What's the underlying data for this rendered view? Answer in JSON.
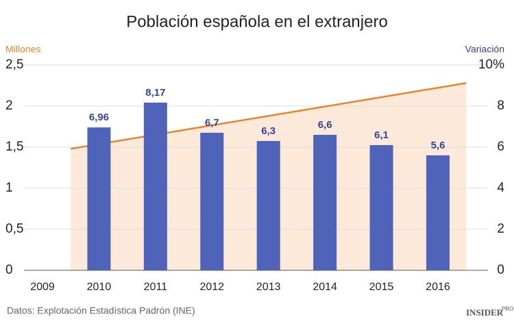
{
  "chart_data": {
    "type": "bar",
    "title": "Población española en el extranjero",
    "categories": [
      "2009",
      "2010",
      "2011",
      "2012",
      "2013",
      "2014",
      "2015",
      "2016"
    ],
    "series": [
      {
        "name": "Variación",
        "type": "bar",
        "axis": "y2",
        "color": "#4f63b8",
        "values": [
          null,
          6.96,
          8.17,
          6.7,
          6.3,
          6.6,
          6.1,
          5.6
        ],
        "value_labels": [
          null,
          "6,96",
          "8,17",
          "6,7",
          "6,3",
          "6,6",
          "6,1",
          "5,6"
        ]
      },
      {
        "name": "Millones",
        "type": "area",
        "color": "#e8862a",
        "fill": "#fde3d0",
        "x": [
          2009.5,
          2016.5
        ],
        "values": [
          1.48,
          2.28
        ]
      }
    ],
    "y_label": "Millones",
    "y2_label": "Variación",
    "ylim": [
      0,
      2.5
    ],
    "yticks": [
      0,
      {
        "value": 0.5,
        "label": "0,5"
      },
      1,
      {
        "value": 1.5,
        "label": "1,5"
      },
      2,
      {
        "value": 2.5,
        "label": "2,5"
      }
    ],
    "y2lim": [
      0,
      10
    ],
    "y2ticks": [
      0,
      2,
      4,
      6,
      8,
      {
        "value": 10,
        "label": "10%"
      }
    ],
    "grid": true,
    "source": "Datos: Explotación Estadística Padrón (INE)",
    "logo": {
      "text": "INSIDER",
      "sup": "PRO"
    }
  }
}
